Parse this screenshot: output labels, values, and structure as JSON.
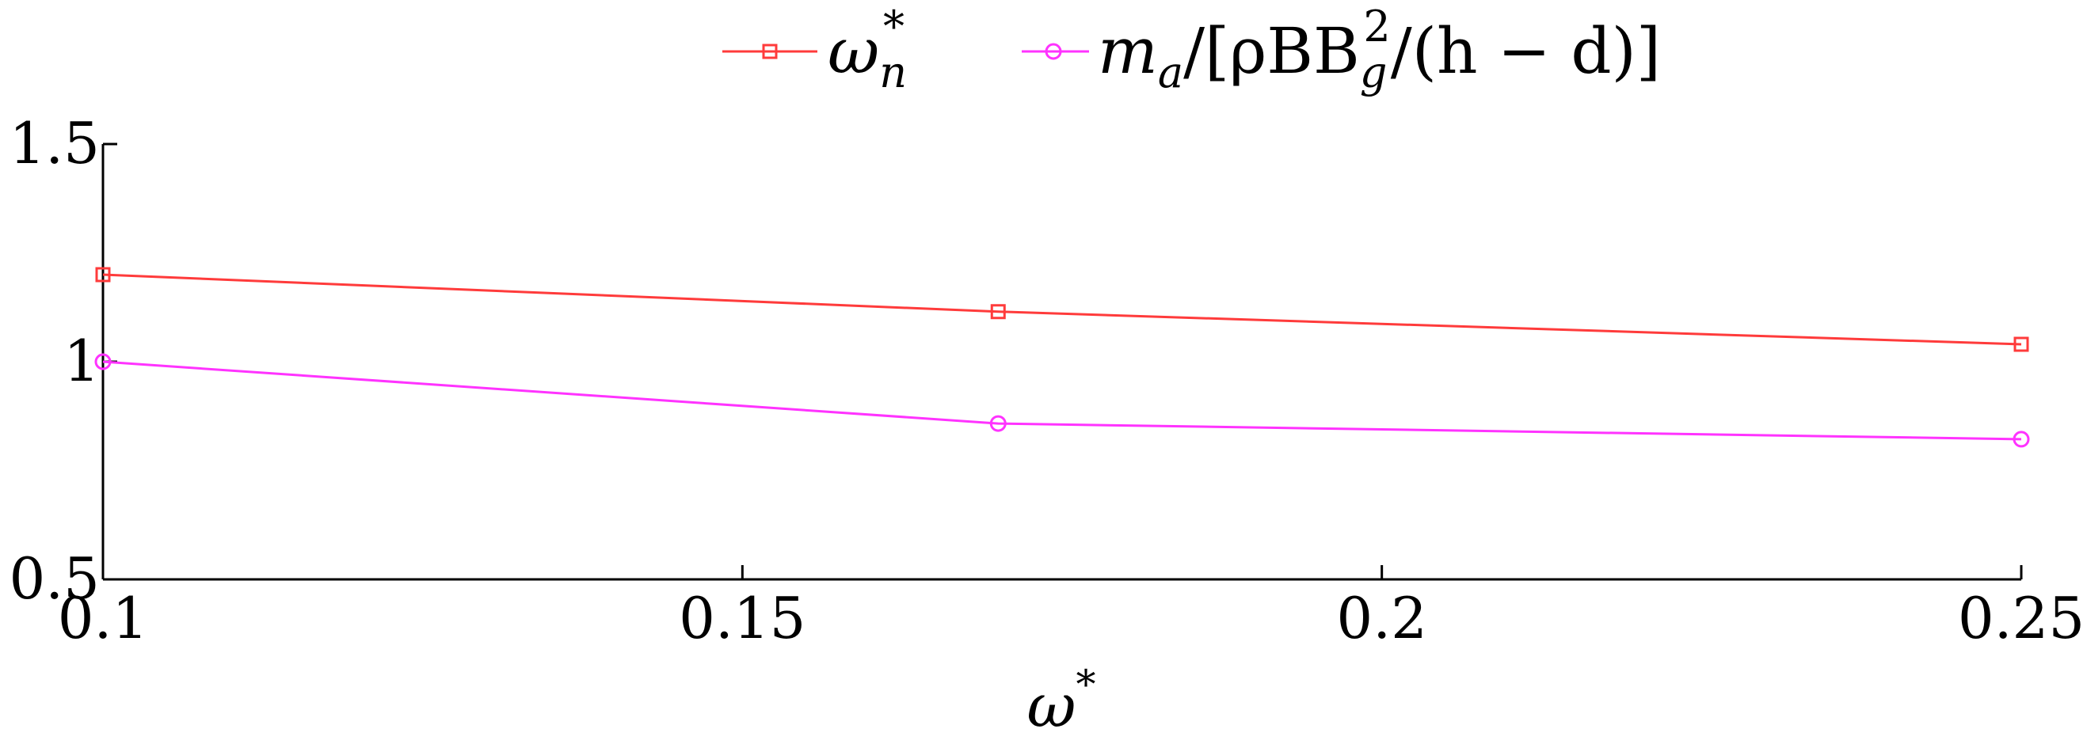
{
  "chart_data": {
    "type": "line",
    "x": [
      0.1,
      0.17,
      0.25
    ],
    "series": [
      {
        "name_parts": [
          "ω",
          "n",
          "*"
        ],
        "color": "#ff3b3b",
        "marker": "square",
        "values": [
          1.2,
          1.115,
          1.04
        ]
      },
      {
        "name_parts": [
          "m",
          "a",
          "/[ρBB",
          "g",
          "2",
          "/(h − d)]"
        ],
        "color": "#ff33ff",
        "marker": "circle",
        "values": [
          1.0,
          0.858,
          0.822
        ]
      }
    ],
    "xlabel_parts": [
      "ω",
      "*"
    ],
    "ylabel": "",
    "xlim": [
      0.1,
      0.25
    ],
    "ylim": [
      0.5,
      1.5
    ],
    "xticks": [
      "0.1",
      "0.15",
      "0.2",
      "0.25"
    ],
    "yticks": [
      "0.5",
      "1",
      "1.5"
    ],
    "grid": false,
    "legend_position": "top"
  }
}
